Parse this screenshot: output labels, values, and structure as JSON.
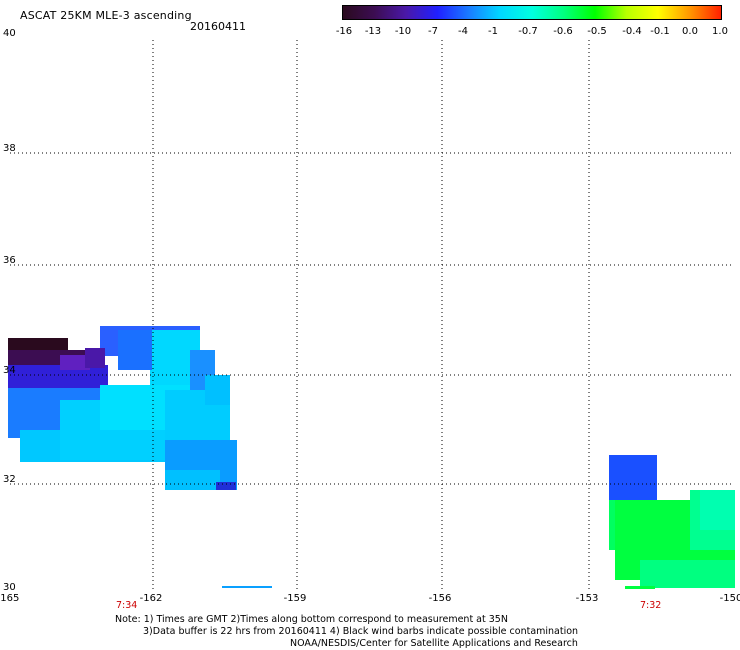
{
  "header": {
    "title": "ASCAT 25KM MLE-3 ascending",
    "date": "20160411"
  },
  "colorbar": {
    "labels": [
      "-16",
      "-13",
      "-10",
      "-7",
      "-4",
      "-1",
      "-0.7",
      "-0.6",
      "-0.5",
      "-0.4",
      "-0.1",
      "0.0",
      "1.0"
    ],
    "colors": [
      "#2a0a1e",
      "#3c0d52",
      "#4a18a8",
      "#2020ff",
      "#1a7cff",
      "#00d8ff",
      "#00ffe0",
      "#00ff80",
      "#00ff00",
      "#b8ff00",
      "#ffff00",
      "#ff9800",
      "#ff2000"
    ]
  },
  "map": {
    "lon_labels": [
      "-165",
      "-162",
      "-159",
      "-156",
      "-153",
      "-150"
    ],
    "lat_labels": [
      "40",
      "38",
      "36",
      "34",
      "32",
      "30"
    ],
    "pass_times": [
      "7:34",
      "7:32"
    ]
  },
  "footer": {
    "note1": "Note: 1) Times are GMT 2)Times along bottom correspond to measurement at 35N",
    "note2": "3)Data buffer is 22 hrs from 20160411 4) Black wind barbs indicate possible contamination",
    "credit": "NOAA/NESDIS/Center for Satellite Applications and Research"
  }
}
